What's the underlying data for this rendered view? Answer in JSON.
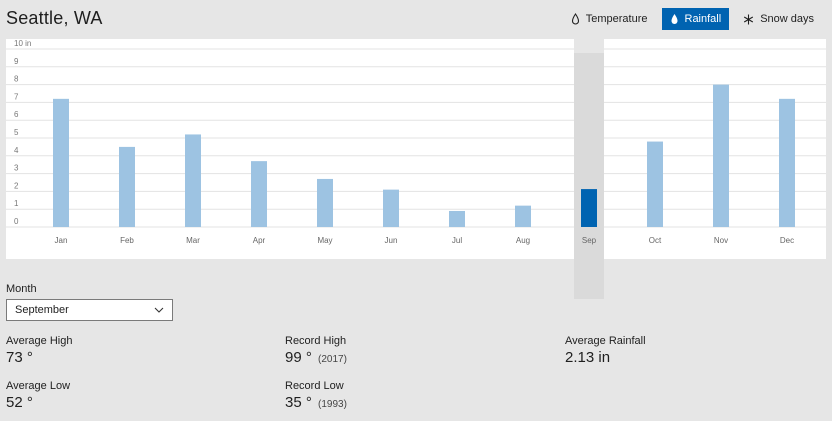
{
  "header": {
    "city": "Seattle, WA",
    "tabs": [
      {
        "label": "Temperature",
        "icon": "thermometer-icon",
        "active": false
      },
      {
        "label": "Rainfall",
        "icon": "raindrop-icon",
        "active": true
      },
      {
        "label": "Snow days",
        "icon": "snowflake-icon",
        "active": false
      }
    ]
  },
  "colors": {
    "accent": "#0063b1",
    "bar": "#9dc3e2",
    "bar_selected": "#0063b1"
  },
  "chart_data": {
    "type": "bar",
    "categories": [
      "Jan",
      "Feb",
      "Mar",
      "Apr",
      "May",
      "Jun",
      "Jul",
      "Aug",
      "Sep",
      "Oct",
      "Nov",
      "Dec"
    ],
    "values": [
      7.2,
      4.5,
      5.2,
      3.7,
      2.7,
      2.1,
      0.9,
      1.2,
      2.13,
      4.8,
      8.0,
      7.2
    ],
    "selected_index": 8,
    "ylim": [
      0,
      10
    ],
    "yticks": [
      "0",
      "1",
      "2",
      "3",
      "4",
      "5",
      "6",
      "7",
      "8",
      "9",
      "10 in"
    ],
    "grid": true
  },
  "controls": {
    "month_label": "Month",
    "month_value": "September"
  },
  "stats": {
    "avg_high_label": "Average High",
    "avg_high_value": "73 °",
    "avg_low_label": "Average Low",
    "avg_low_value": "52 °",
    "record_high_label": "Record High",
    "record_high_value": "99 °",
    "record_high_year": "(2017)",
    "record_low_label": "Record Low",
    "record_low_value": "35 °",
    "record_low_year": "(1993)",
    "avg_rain_label": "Average Rainfall",
    "avg_rain_value": "2.13 in"
  }
}
